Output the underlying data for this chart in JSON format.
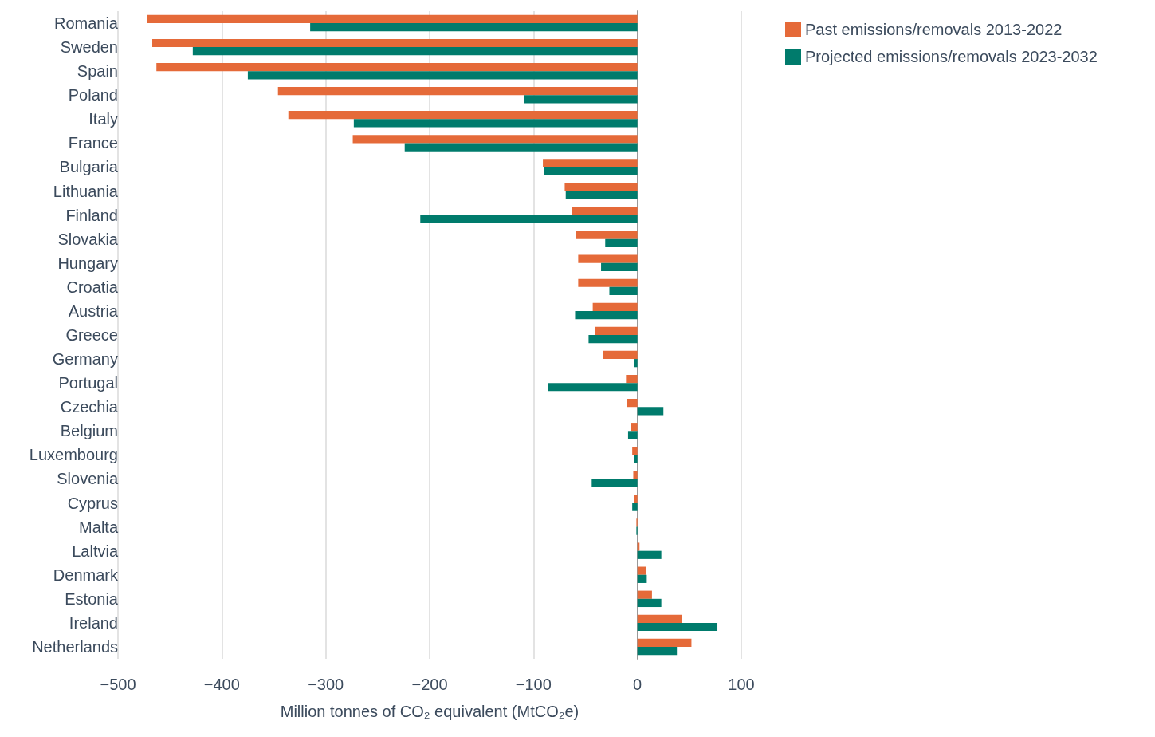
{
  "chart_data": {
    "type": "bar",
    "orientation": "horizontal",
    "categories": [
      "Romania",
      "Sweden",
      "Spain",
      "Poland",
      "Italy",
      "France",
      "Bulgaria",
      "Lithuania",
      "Finland",
      "Slovakia",
      "Hungary",
      "Croatia",
      "Austria",
      "Greece",
      "Germany",
      "Portugal",
      "Czechia",
      "Belgium",
      "Luxembourg",
      "Slovenia",
      "Cyprus",
      "Malta",
      "Laltvia",
      "Denmark",
      "Estonia",
      "Ireland",
      "Netherlands"
    ],
    "series": [
      {
        "name": "Past emissions/removals 2013-2022",
        "color": "#e56a39",
        "values": [
          -472,
          -467,
          -463,
          -346,
          -336,
          -274,
          -91,
          -70,
          -63,
          -59,
          -57,
          -57,
          -43,
          -41,
          -33,
          -11,
          -10,
          -6,
          -5,
          -4,
          -3,
          -1,
          2,
          8,
          14,
          43,
          52
        ]
      },
      {
        "name": "Projected emissions/removals 2023-2032",
        "color": "#007b6c",
        "values": [
          -315,
          -428,
          -375,
          -109,
          -273,
          -224,
          -90,
          -69,
          -209,
          -31,
          -35,
          -27,
          -60,
          -47,
          -3,
          -86,
          25,
          -9,
          -3,
          -44,
          -5,
          -1,
          23,
          9,
          23,
          77,
          38
        ]
      }
    ],
    "xlabel": "Million tonnes of CO₂ equivalent (MtCO₂e)",
    "xlim": [
      -500,
      100
    ],
    "xticks": [
      {
        "value": -500,
        "label": "−500"
      },
      {
        "value": -400,
        "label": "−400"
      },
      {
        "value": -300,
        "label": "−300"
      },
      {
        "value": -200,
        "label": "−200"
      },
      {
        "value": -100,
        "label": "−100"
      },
      0,
      100
    ],
    "grid": "x",
    "legend": "top right"
  }
}
